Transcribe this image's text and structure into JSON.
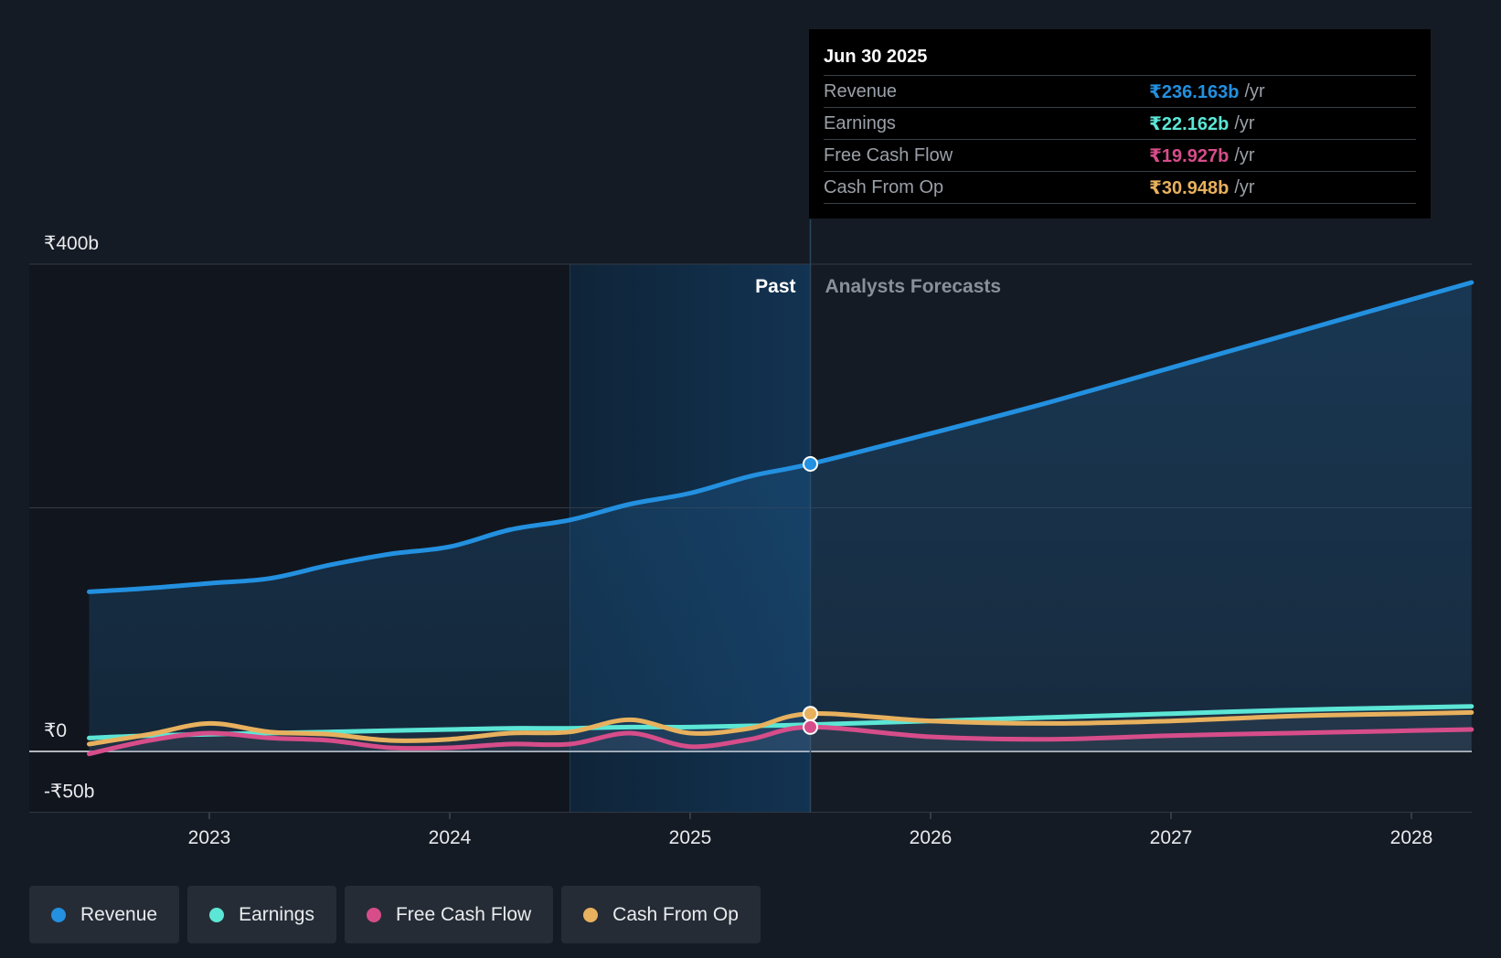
{
  "tooltip": {
    "date": "Jun 30 2025",
    "rows": [
      {
        "label": "Revenue",
        "value": "₹236.163b",
        "unit": "/yr",
        "color": "#2390e0"
      },
      {
        "label": "Earnings",
        "value": "₹22.162b",
        "unit": "/yr",
        "color": "#5ce6d5"
      },
      {
        "label": "Free Cash Flow",
        "value": "₹19.927b",
        "unit": "/yr",
        "color": "#d64d8a"
      },
      {
        "label": "Cash From Op",
        "value": "₹30.948b",
        "unit": "/yr",
        "color": "#e8b15e"
      }
    ]
  },
  "legend": [
    {
      "label": "Revenue",
      "color": "#2390e0"
    },
    {
      "label": "Earnings",
      "color": "#5ce6d5"
    },
    {
      "label": "Free Cash Flow",
      "color": "#d64d8a"
    },
    {
      "label": "Cash From Op",
      "color": "#e8b15e"
    }
  ],
  "chart_data": {
    "type": "line",
    "title": "",
    "xlabel": "",
    "ylabel": "",
    "ylim": [
      -50,
      400
    ],
    "xlim": [
      2022.5,
      2028.25
    ],
    "y_tick_labels": [
      {
        "value": 400,
        "label": "₹400b"
      },
      {
        "value": 0,
        "label": "₹0"
      },
      {
        "value": -50,
        "label": "-₹50b"
      }
    ],
    "x_ticks": [
      2023,
      2024,
      2025,
      2026,
      2027,
      2028
    ],
    "x_tick_labels": [
      "2023",
      "2024",
      "2025",
      "2026",
      "2027",
      "2028"
    ],
    "past_label": "Past",
    "forecast_label": "Analysts Forecasts",
    "past_shade_start": 2024.5,
    "divider_x": 2025.5,
    "series": [
      {
        "name": "Revenue",
        "color": "#2390e0",
        "x": [
          2022.5,
          2022.75,
          2023.0,
          2023.25,
          2023.5,
          2023.75,
          2024.0,
          2024.25,
          2024.5,
          2024.75,
          2025.0,
          2025.25,
          2025.5,
          2026.0,
          2026.5,
          2027.0,
          2027.5,
          2028.0,
          2028.25
        ],
        "values": [
          131,
          134,
          138,
          142,
          153,
          162,
          168,
          182,
          190,
          203,
          212,
          226,
          236,
          261,
          287,
          315,
          343,
          371,
          385
        ]
      },
      {
        "name": "Earnings",
        "color": "#5ce6d5",
        "x": [
          2022.5,
          2022.75,
          2023.0,
          2023.25,
          2023.5,
          2023.75,
          2024.0,
          2024.25,
          2024.5,
          2024.75,
          2025.0,
          2025.25,
          2025.5,
          2026.0,
          2026.5,
          2027.0,
          2027.5,
          2028.0,
          2028.25
        ],
        "values": [
          11,
          13,
          14,
          15,
          16,
          17,
          18,
          19,
          19,
          20,
          20,
          21,
          22,
          25,
          28,
          31,
          34,
          36,
          37
        ]
      },
      {
        "name": "Free Cash Flow",
        "color": "#d64d8a",
        "x": [
          2022.5,
          2022.75,
          2023.0,
          2023.25,
          2023.5,
          2023.75,
          2024.0,
          2024.25,
          2024.5,
          2024.75,
          2025.0,
          2025.25,
          2025.5,
          2026.0,
          2026.5,
          2027.0,
          2027.5,
          2028.0,
          2028.25
        ],
        "values": [
          -2,
          9,
          15,
          11,
          9,
          3,
          3,
          6,
          6,
          15,
          4,
          10,
          20,
          12,
          10,
          13,
          15,
          17,
          18
        ]
      },
      {
        "name": "Cash From Op",
        "color": "#e8b15e",
        "x": [
          2022.5,
          2022.75,
          2023.0,
          2023.25,
          2023.5,
          2023.75,
          2024.0,
          2024.25,
          2024.5,
          2024.75,
          2025.0,
          2025.25,
          2025.5,
          2026.0,
          2026.5,
          2027.0,
          2027.5,
          2028.0,
          2028.25
        ],
        "values": [
          6,
          14,
          23,
          16,
          14,
          9,
          10,
          15,
          16,
          26,
          15,
          19,
          31,
          25,
          23,
          25,
          29,
          31,
          32
        ]
      }
    ],
    "highlight_x": 2025.5
  }
}
